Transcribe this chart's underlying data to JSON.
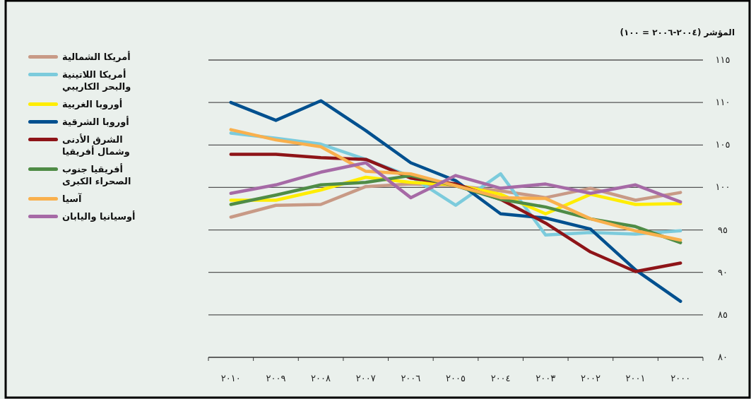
{
  "chart_data": {
    "type": "line",
    "ylabel": "المؤشر (٢٠٠٤-٢٠٠٦ = ١٠٠)",
    "categories": [
      "٢٠١٠",
      "٢٠٠٩",
      "٢٠٠٨",
      "٢٠٠٧",
      "٢٠٠٦",
      "٢٠٠٥",
      "٢٠٠٤",
      "٢٠٠٣",
      "٢٠٠٢",
      "٢٠٠١",
      "٢٠٠٠"
    ],
    "ylim": [
      80,
      115
    ],
    "yticks": [
      {
        "value": 80,
        "label": "٨٠"
      },
      {
        "value": 85,
        "label": "٨٥"
      },
      {
        "value": 90,
        "label": "٩٠"
      },
      {
        "value": 95,
        "label": "٩٥"
      },
      {
        "value": 100,
        "label": "١٠٠"
      },
      {
        "value": 105,
        "label": "١٠٥"
      },
      {
        "value": 110,
        "label": "١١٠"
      },
      {
        "value": 115,
        "label": "١١٥"
      }
    ],
    "grid": "y",
    "legend": "left",
    "marker": "none",
    "line_style": "solid",
    "series": [
      {
        "name": "أمريكا الشمالية",
        "color": "#c89a86",
        "values": [
          96.5,
          97.9,
          98.0,
          100.1,
          100.4,
          100.2,
          99.6,
          98.8,
          99.9,
          98.5,
          99.4
        ]
      },
      {
        "name": "أمريكا اللاتينية والبحر الكاريبي",
        "color": "#7ccbdc",
        "values": [
          106.4,
          105.8,
          105.1,
          103.3,
          101.3,
          97.9,
          101.6,
          94.4,
          94.7,
          94.5,
          94.9
        ]
      },
      {
        "name": "أوروبا الغربية",
        "color": "#ffed00",
        "values": [
          98.5,
          98.5,
          99.7,
          101.2,
          100.6,
          100.3,
          99.2,
          96.9,
          99.2,
          98.0,
          98.1
        ]
      },
      {
        "name": "أوروبا الشرقية",
        "color": "#00508f",
        "values": [
          110.0,
          107.9,
          110.2,
          106.7,
          102.9,
          100.8,
          96.9,
          96.4,
          95.1,
          90.3,
          86.6
        ]
      },
      {
        "name": "الشرق الأدنى وشمال أفريقيا",
        "color": "#8e1418",
        "values": [
          103.9,
          103.9,
          103.5,
          103.3,
          101.1,
          100.4,
          98.6,
          95.8,
          92.4,
          90.1,
          91.1
        ]
      },
      {
        "name": "أفريقيا جنوب الصحراء الكبرى",
        "color": "#4f8c46",
        "values": [
          98.0,
          99.1,
          100.3,
          100.6,
          101.4,
          100.2,
          98.6,
          97.7,
          96.3,
          95.4,
          93.5
        ]
      },
      {
        "name": "آسيا",
        "color": "#f9b04d",
        "values": [
          106.8,
          105.6,
          104.8,
          101.9,
          101.6,
          100.2,
          98.8,
          98.7,
          96.3,
          94.9,
          93.8
        ]
      },
      {
        "name": "أوسيانيا واليابان",
        "color": "#a66aa6",
        "values": [
          99.3,
          100.3,
          101.8,
          102.9,
          98.8,
          101.4,
          99.9,
          100.4,
          99.3,
          100.3,
          98.3
        ]
      }
    ]
  }
}
